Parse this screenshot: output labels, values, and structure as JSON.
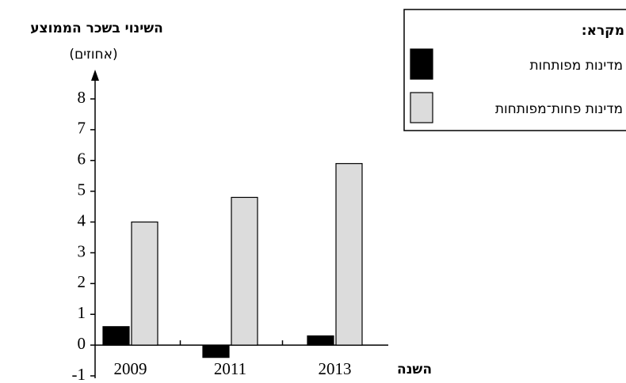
{
  "chart_data": {
    "type": "bar",
    "y_label": "השינוי בשכר הממוצע",
    "y_unit": "(אחוזים)",
    "x_label": "השנה",
    "legend_title": "מקרא:",
    "categories": [
      "2009",
      "2011",
      "2013"
    ],
    "series": [
      {
        "name": "מדינות מפותחות",
        "color": "#000000",
        "values": [
          0.6,
          -0.4,
          0.3
        ]
      },
      {
        "name": "מדינות פחות־מפותחות",
        "color": "#dcdcdc",
        "values": [
          4,
          4.8,
          5.9
        ]
      }
    ],
    "ylim": [
      -1,
      8
    ],
    "yticks": [
      -1,
      0,
      1,
      2,
      3,
      4,
      5,
      6,
      7,
      8
    ],
    "grid": false
  }
}
